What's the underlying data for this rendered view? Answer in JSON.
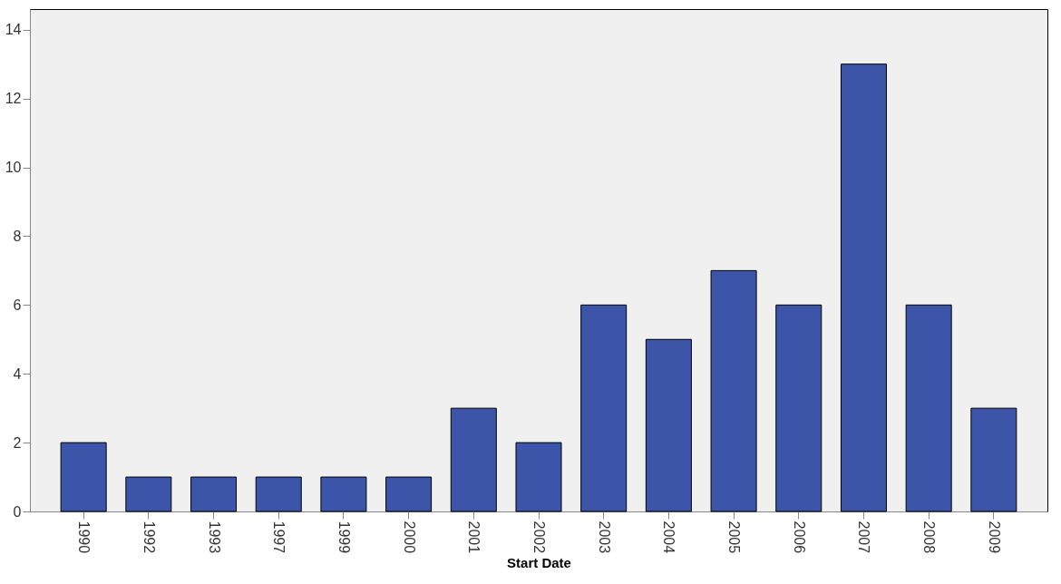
{
  "chart_data": {
    "type": "bar",
    "xlabel": "Start Date",
    "categories": [
      "1990",
      "1992",
      "1993",
      "1997",
      "1999",
      "2000",
      "2001",
      "2002",
      "2003",
      "2004",
      "2005",
      "2006",
      "2007",
      "2008",
      "2009"
    ],
    "values": [
      2,
      1,
      1,
      1,
      1,
      1,
      3,
      2,
      6,
      5,
      7,
      6,
      13,
      6,
      3
    ],
    "color": "#3d55a8",
    "ylim": [
      0,
      14.6
    ],
    "yticks": [
      0,
      2,
      4,
      6,
      8,
      10,
      12,
      14
    ],
    "grid": false
  }
}
